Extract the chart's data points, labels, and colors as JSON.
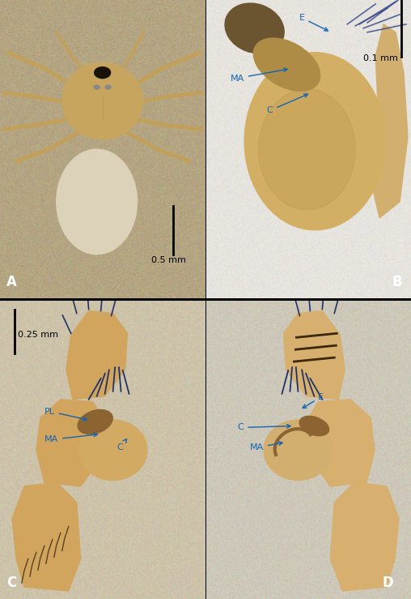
{
  "figure_width": 5.08,
  "figure_height": 7.39,
  "dpi": 100,
  "background_color": "#000000",
  "panel_A": {
    "bg_color": [
      180,
      165,
      130
    ],
    "label": "A",
    "label_color": "white",
    "scale_bar_text": "0.5 mm",
    "ceph_color": [
      200,
      165,
      95
    ],
    "abd_color": [
      220,
      210,
      185
    ],
    "leg_color": [
      195,
      160,
      90
    ]
  },
  "panel_B": {
    "bg_color": [
      230,
      228,
      222
    ],
    "label": "B",
    "label_color": "white",
    "scale_bar_text": "0.1 mm",
    "bulb_color": [
      210,
      175,
      100
    ],
    "struct_color": [
      175,
      140,
      70
    ]
  },
  "panel_C": {
    "bg_color": [
      205,
      195,
      170
    ],
    "label": "C",
    "label_color": "white",
    "scale_bar_text": "0.25 mm",
    "palp_color": [
      210,
      165,
      95
    ],
    "dark_color": [
      140,
      100,
      50
    ]
  },
  "panel_D": {
    "bg_color": [
      205,
      200,
      185
    ],
    "label": "D",
    "label_color": "white",
    "palp_color": [
      215,
      175,
      110
    ],
    "dark_color": [
      140,
      100,
      50
    ]
  },
  "arrow_color": "#1464b4",
  "label_fontsize": 12,
  "annotation_fontsize": 8,
  "scalebar_fontsize": 8
}
